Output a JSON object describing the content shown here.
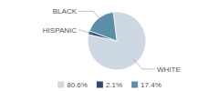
{
  "chart_data": {
    "type": "pie",
    "categories": [
      "WHITE",
      "HISPANIC",
      "BLACK"
    ],
    "values": [
      80.6,
      2.1,
      17.4
    ],
    "value_labels": [
      "80.6%",
      "2.1%",
      "17.4%"
    ],
    "colors": [
      "#cdd8e3",
      "#2b4a6b",
      "#5b8fa8"
    ],
    "legend": "bottom"
  }
}
